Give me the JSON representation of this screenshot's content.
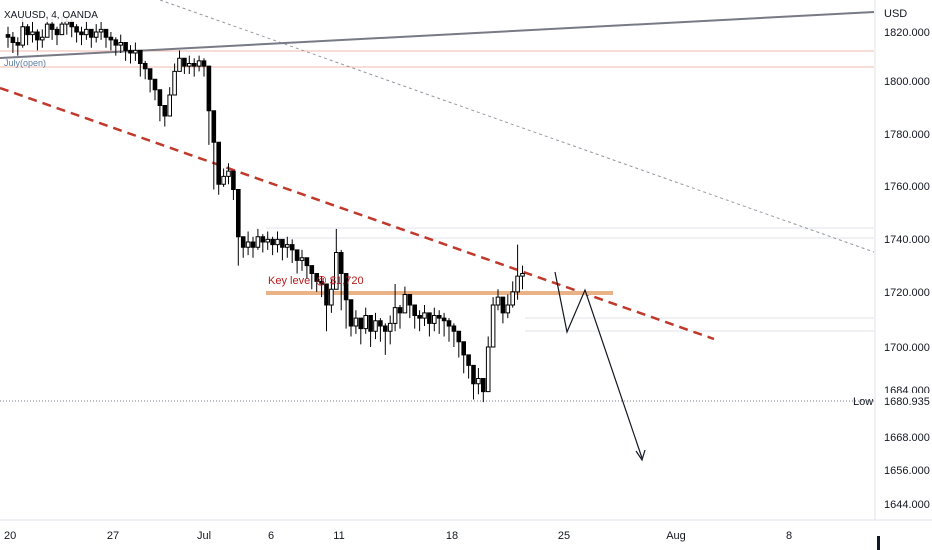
{
  "chart_data": {
    "type": "candlestick",
    "symbol": "XAUUSD, 4, OANDA",
    "currency": "USD",
    "y_ticks": [
      "1820.000",
      "1800.000",
      "1780.000",
      "1760.000",
      "1740.000",
      "1720.000",
      "1700.000",
      "1684.000",
      "1668.000",
      "1656.000",
      "1644.000"
    ],
    "x_ticks": [
      "20",
      "27",
      "Jul",
      "6",
      "11",
      "18",
      "25",
      "Aug",
      "8"
    ],
    "price_tag": {
      "label": "Low",
      "value": "1680.935"
    },
    "annotations": {
      "key_level": "Key level @ $1,720",
      "july_open": "July(open)"
    },
    "series_close": [
      1818,
      1816,
      1815,
      1822,
      1819,
      1820,
      1817,
      1818,
      1823,
      1821,
      1819,
      1823,
      1824,
      1822,
      1820,
      1819,
      1821,
      1818,
      1820,
      1821,
      1818,
      1817,
      1815,
      1816,
      1813,
      1812,
      1813,
      1808,
      1806,
      1802,
      1798,
      1792,
      1788,
      1796,
      1805,
      1810,
      1807,
      1808,
      1807,
      1809,
      1807,
      1790,
      1778,
      1762,
      1765,
      1767,
      1760,
      1742,
      1738,
      1740,
      1738,
      1742,
      1740,
      1741,
      1739,
      1741,
      1738,
      1739,
      1737,
      1733,
      1734,
      1731,
      1728,
      1725,
      1724,
      1716,
      1722,
      1736,
      1728,
      1718,
      1708,
      1711,
      1707,
      1712,
      1706,
      1710,
      1708,
      1706,
      1709,
      1715,
      1713,
      1720,
      1716,
      1712,
      1711,
      1713,
      1709,
      1712,
      1711,
      1710,
      1708,
      1706,
      1702,
      1697,
      1693,
      1686,
      1688,
      1683,
      1700,
      1716,
      1719,
      1713,
      1716,
      1721,
      1727,
      1728
    ],
    "series_high": [
      1822,
      1820,
      1818,
      1826,
      1823,
      1824,
      1821,
      1821,
      1826,
      1825,
      1822,
      1826,
      1826,
      1825,
      1823,
      1822,
      1824,
      1821,
      1823,
      1824,
      1821,
      1820,
      1818,
      1819,
      1816,
      1815,
      1816,
      1811,
      1809,
      1805,
      1801,
      1795,
      1791,
      1799,
      1808,
      1813,
      1810,
      1811,
      1810,
      1811,
      1810,
      1793,
      1781,
      1766,
      1768,
      1770,
      1763,
      1745,
      1742,
      1744,
      1742,
      1745,
      1743,
      1744,
      1742,
      1744,
      1741,
      1742,
      1741,
      1736,
      1737,
      1734,
      1731,
      1728,
      1727,
      1720,
      1726,
      1745,
      1737,
      1722,
      1712,
      1714,
      1710,
      1715,
      1709,
      1713,
      1711,
      1709,
      1712,
      1724,
      1716,
      1723,
      1719,
      1715,
      1714,
      1716,
      1712,
      1715,
      1714,
      1713,
      1711,
      1709,
      1705,
      1700,
      1697,
      1690,
      1692,
      1687,
      1704,
      1719,
      1722,
      1716,
      1720,
      1725,
      1739,
      1731
    ],
    "series_low": [
      1814,
      1812,
      1811,
      1814,
      1815,
      1816,
      1813,
      1814,
      1818,
      1817,
      1815,
      1819,
      1819,
      1818,
      1816,
      1815,
      1817,
      1814,
      1816,
      1817,
      1814,
      1813,
      1811,
      1812,
      1809,
      1808,
      1809,
      1803,
      1802,
      1797,
      1794,
      1786,
      1784,
      1788,
      1799,
      1806,
      1804,
      1804,
      1803,
      1805,
      1803,
      1777,
      1760,
      1758,
      1761,
      1762,
      1756,
      1731,
      1734,
      1735,
      1734,
      1737,
      1736,
      1737,
      1735,
      1736,
      1733,
      1734,
      1732,
      1728,
      1729,
      1726,
      1722,
      1721,
      1719,
      1706,
      1713,
      1725,
      1714,
      1707,
      1704,
      1705,
      1701,
      1705,
      1700,
      1703,
      1702,
      1697,
      1701,
      1706,
      1707,
      1713,
      1711,
      1707,
      1706,
      1708,
      1704,
      1706,
      1705,
      1704,
      1702,
      1700,
      1696,
      1690,
      1688,
      1680,
      1682,
      1679,
      1684,
      1704,
      1714,
      1709,
      1711,
      1715,
      1718,
      1722
    ]
  }
}
